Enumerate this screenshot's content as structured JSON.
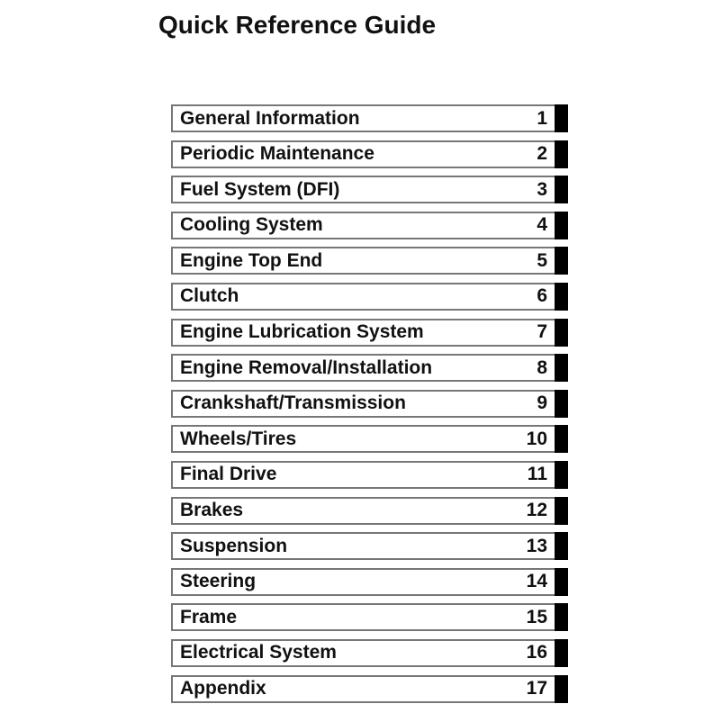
{
  "title": "Quick Reference Guide",
  "sections": [
    {
      "label": "General Information",
      "number": "1"
    },
    {
      "label": "Periodic Maintenance",
      "number": "2"
    },
    {
      "label": "Fuel System (DFI)",
      "number": "3"
    },
    {
      "label": "Cooling System",
      "number": "4"
    },
    {
      "label": "Engine Top End",
      "number": "5"
    },
    {
      "label": "Clutch",
      "number": "6"
    },
    {
      "label": "Engine Lubrication System",
      "number": "7"
    },
    {
      "label": "Engine Removal/Installation",
      "number": "8"
    },
    {
      "label": "Crankshaft/Transmission",
      "number": "9"
    },
    {
      "label": "Wheels/Tires",
      "number": "10"
    },
    {
      "label": "Final Drive",
      "number": "11"
    },
    {
      "label": "Brakes",
      "number": "12"
    },
    {
      "label": "Suspension",
      "number": "13"
    },
    {
      "label": "Steering",
      "number": "14"
    },
    {
      "label": "Frame",
      "number": "15"
    },
    {
      "label": "Electrical System",
      "number": "16"
    },
    {
      "label": "Appendix",
      "number": "17"
    }
  ]
}
